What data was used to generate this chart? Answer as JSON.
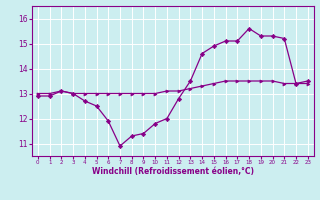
{
  "xlabel": "Windchill (Refroidissement éolien,°C)",
  "bg_color": "#cceef0",
  "line_color": "#880088",
  "grid_color": "#ffffff",
  "xlim": [
    -0.5,
    23.5
  ],
  "ylim": [
    10.5,
    16.5
  ],
  "yticks": [
    11,
    12,
    13,
    14,
    15,
    16
  ],
  "xticks": [
    0,
    1,
    2,
    3,
    4,
    5,
    6,
    7,
    8,
    9,
    10,
    11,
    12,
    13,
    14,
    15,
    16,
    17,
    18,
    19,
    20,
    21,
    22,
    23
  ],
  "series1_x": [
    0,
    1,
    2,
    3,
    4,
    5,
    6,
    7,
    8,
    9,
    10,
    11,
    12,
    13,
    14,
    15,
    16,
    17,
    18,
    19,
    20,
    21,
    22,
    23
  ],
  "series1_y": [
    13.0,
    13.0,
    13.1,
    13.0,
    13.0,
    13.0,
    13.0,
    13.0,
    13.0,
    13.0,
    13.0,
    13.1,
    13.1,
    13.2,
    13.3,
    13.4,
    13.5,
    13.5,
    13.5,
    13.5,
    13.5,
    13.4,
    13.4,
    13.4
  ],
  "series2_x": [
    0,
    1,
    2,
    3,
    4,
    5,
    6,
    7,
    8,
    9,
    10,
    11,
    12,
    13,
    14,
    15,
    16,
    17,
    18,
    19,
    20,
    21,
    22,
    23
  ],
  "series2_y": [
    12.9,
    12.9,
    13.1,
    13.0,
    12.7,
    12.5,
    11.9,
    10.9,
    11.3,
    11.4,
    11.8,
    12.0,
    12.8,
    13.5,
    14.6,
    14.9,
    15.1,
    15.1,
    15.6,
    15.3,
    15.3,
    15.2,
    13.4,
    13.5
  ]
}
